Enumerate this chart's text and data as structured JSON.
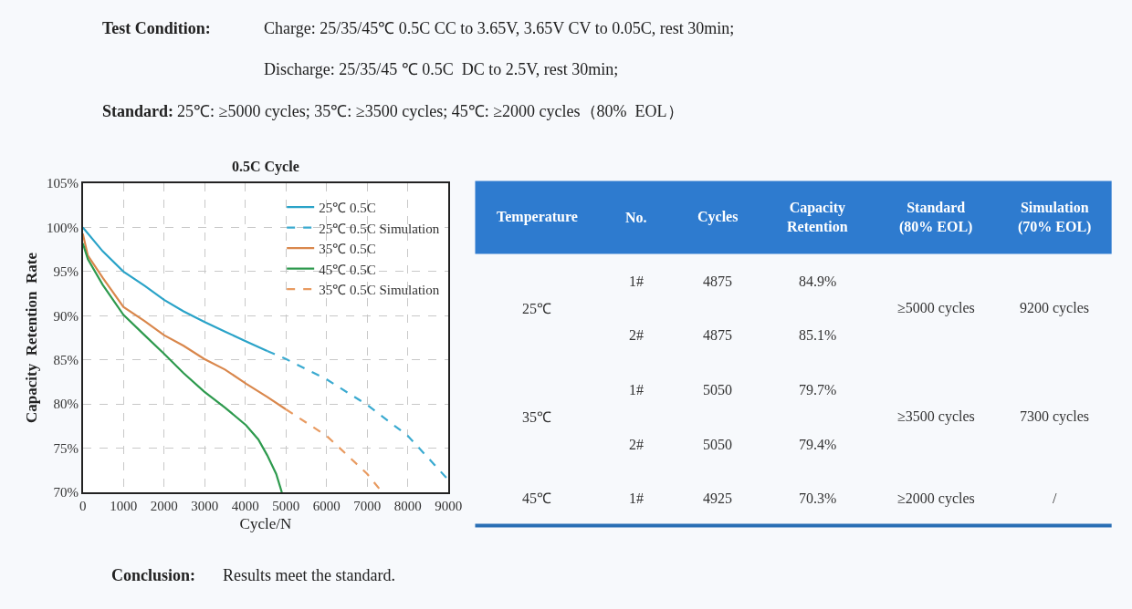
{
  "chart_data": [
    {
      "type": "line",
      "title": "0.5C Cycle",
      "xlabel": "Cycle/N",
      "ylabel": "Capacity  Retention  Rate",
      "xlim": [
        0,
        9000
      ],
      "xticks": [
        0,
        1000,
        2000,
        3000,
        4000,
        5000,
        6000,
        7000,
        8000,
        9000
      ],
      "ylim": [
        70,
        105
      ],
      "yticks": [
        {
          "value": 70,
          "label": "70%"
        },
        {
          "value": 75,
          "label": "75%"
        },
        {
          "value": 80,
          "label": "80%"
        },
        {
          "value": 85,
          "label": "85%"
        },
        {
          "value": 90,
          "label": "90%"
        },
        {
          "value": 95,
          "label": "95%"
        },
        {
          "value": 100,
          "label": "100%"
        },
        {
          "value": 105,
          "label": "105%"
        }
      ],
      "grid": true,
      "legend": "top right",
      "marker": "none",
      "series": [
        {
          "name": "25℃ 0.5C",
          "color": "#2aa3c8",
          "line_style": "solid",
          "x": [
            0,
            490,
            1000,
            1520,
            2000,
            2480,
            2990,
            3500,
            4020,
            4540
          ],
          "values": [
            100.0,
            97.3,
            95.0,
            93.4,
            91.8,
            90.5,
            89.3,
            88.2,
            87.1,
            86.0
          ]
        },
        {
          "name": "25℃ 0.5C Simulation",
          "color": "#3aaad0",
          "line_style": "dashed",
          "x": [
            4540,
            5000,
            6000,
            7000,
            8000,
            9000
          ],
          "values": [
            86.0,
            85.1,
            82.8,
            79.9,
            76.4,
            71.4
          ]
        },
        {
          "name": "35℃ 0.5C",
          "color": "#d9874c",
          "line_style": "solid",
          "x": [
            0,
            125,
            490,
            1000,
            1520,
            2000,
            2480,
            2990,
            3500,
            4020,
            4540,
            5000
          ],
          "values": [
            99.3,
            96.8,
            94.3,
            91.0,
            89.4,
            87.8,
            86.6,
            85.1,
            83.9,
            82.3,
            80.8,
            79.4
          ]
        },
        {
          "name": "45℃ 0.5C",
          "color": "#2e9a4e",
          "line_style": "solid",
          "x": [
            0,
            125,
            490,
            1000,
            1520,
            2000,
            2480,
            2990,
            3500,
            4020,
            4320,
            4540,
            4760,
            4900
          ],
          "values": [
            98.2,
            96.4,
            93.5,
            90.1,
            87.8,
            85.7,
            83.5,
            81.4,
            79.6,
            77.6,
            76.0,
            74.2,
            72.1,
            70.0
          ]
        },
        {
          "name": "35℃ 0.5C Simulation",
          "color": "#e89a60",
          "line_style": "dashed",
          "x": [
            5000,
            6000,
            7000,
            7370
          ],
          "values": [
            79.4,
            76.4,
            72.1,
            70.0
          ]
        }
      ],
      "annotations": [
        "Test Condition:",
        "Charge: 25/35/45℃ 0.5C CC to 3.65V, 3.65V CV to 0.05C, rest 30min;",
        "Discharge: 25/35/45 ℃ 0.5C  DC to 2.5V, rest 30min;",
        "Standard:",
        "25℃: ≥5000 cycles; 35℃: ≥3500 cycles; 45℃: ≥2000 cycles（80%  EOL）",
        "Conclusion:",
        "Results meet the standard."
      ]
    },
    {
      "type": "other",
      "categories": [
        "Temperature",
        "No.",
        "Cycles",
        "Capacity\nRetention",
        "Standard\n(80% EOL)",
        "Simulation\n(70% EOL)"
      ],
      "cell_labels": [
        [
          "25℃",
          "1#",
          "4875",
          "84.9%",
          "≥5000 cycles",
          "9200 cycles"
        ],
        [
          null,
          "2#",
          "4875",
          "85.1%",
          null,
          null
        ],
        [
          "35℃",
          "1#",
          "5050",
          "79.7%",
          "≥3500 cycles",
          "7300 cycles"
        ],
        [
          null,
          "2#",
          "5050",
          "79.4%",
          null,
          null
        ],
        [
          "45℃",
          "1#",
          "4925",
          "70.3%",
          "≥2000 cycles",
          "/"
        ]
      ]
    }
  ]
}
